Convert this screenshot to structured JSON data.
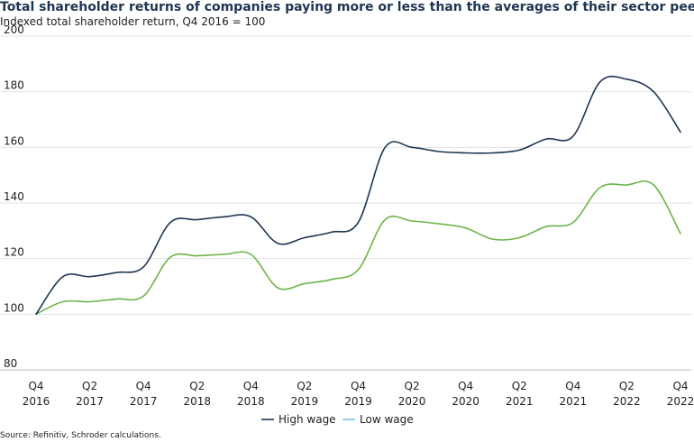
{
  "chart_data": {
    "type": "line",
    "title": "Total shareholder returns of companies paying more or less than the averages of their sector peers",
    "subtitle": "Indexed total shareholder return, Q4 2016 = 100",
    "source": "Source: Refinitiv, Schroder calculations.",
    "ylim": [
      80,
      200
    ],
    "yticks": [
      80,
      100,
      120,
      140,
      160,
      180,
      200
    ],
    "grid": true,
    "legend_position": "bottom-center",
    "xtick_labels": [
      [
        "Q4",
        "2016"
      ],
      [
        "Q2",
        "2017"
      ],
      [
        "Q4",
        "2017"
      ],
      [
        "Q2",
        "2018"
      ],
      [
        "Q4",
        "2018"
      ],
      [
        "Q2",
        "2019"
      ],
      [
        "Q4",
        "2019"
      ],
      [
        "Q2",
        "2020"
      ],
      [
        "Q4",
        "2020"
      ],
      [
        "Q2",
        "2021"
      ],
      [
        "Q4",
        "2021"
      ],
      [
        "Q2",
        "2022"
      ],
      [
        "Q4",
        "2022"
      ]
    ],
    "x": [
      "Q4 2016",
      "Q1 2017",
      "Q2 2017",
      "Q3 2017",
      "Q4 2017",
      "Q1 2018",
      "Q2 2018",
      "Q3 2018",
      "Q4 2018",
      "Q1 2019",
      "Q2 2019",
      "Q3 2019",
      "Q4 2019",
      "Q1 2020",
      "Q2 2020",
      "Q3 2020",
      "Q4 2020",
      "Q1 2021",
      "Q2 2021",
      "Q3 2021",
      "Q4 2021",
      "Q1 2022",
      "Q2 2022",
      "Q3 2022",
      "Q4 2022"
    ],
    "series": [
      {
        "name": "High wage",
        "color": "#1f3552",
        "values": [
          100,
          113.5,
          113.5,
          115,
          117,
          133,
          134,
          135,
          135,
          125.5,
          127.5,
          129.5,
          133,
          160,
          160,
          158.5,
          158,
          158,
          159,
          163,
          164,
          183.5,
          184.5,
          180,
          165.5
        ]
      },
      {
        "name": "Low wage",
        "color": "#6ab547",
        "values": [
          100,
          104.5,
          104.5,
          105.5,
          106.5,
          120.5,
          121,
          121.5,
          121.5,
          109.5,
          111,
          112.5,
          116,
          134,
          133.5,
          132.5,
          131,
          127,
          127.5,
          131.5,
          133,
          145.5,
          146.5,
          146.5,
          129
        ]
      }
    ]
  }
}
